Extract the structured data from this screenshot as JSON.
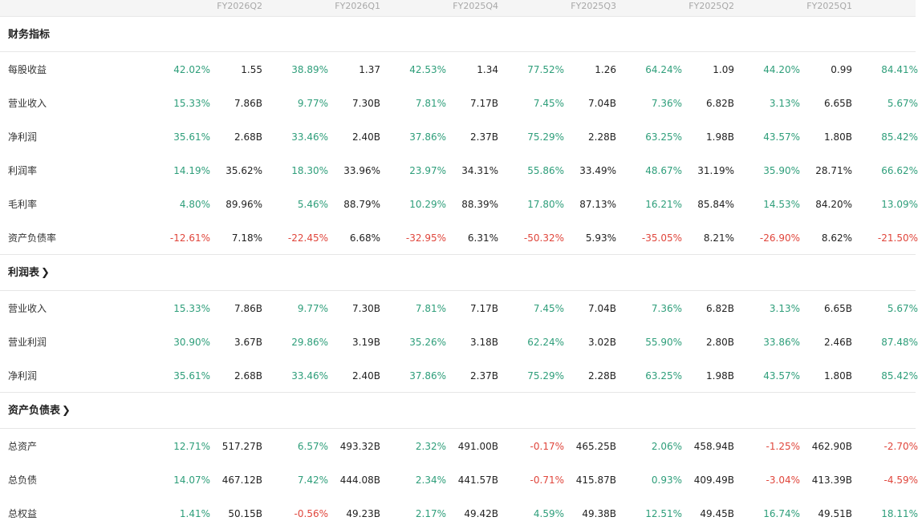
{
  "periods": [
    "FY2026Q2",
    "FY2026Q1",
    "FY2025Q4",
    "FY2025Q3",
    "FY2025Q2",
    "FY2025Q1"
  ],
  "colors": {
    "up": "#2e9e7a",
    "down": "#e0463c"
  },
  "sections": [
    {
      "title": "财务指标",
      "arrow": "",
      "rows": [
        {
          "label": "每股收益",
          "cells": [
            {
              "chg": "42.02%",
              "val": "1.55"
            },
            {
              "chg": "38.89%",
              "val": "1.37"
            },
            {
              "chg": "42.53%",
              "val": "1.34"
            },
            {
              "chg": "77.52%",
              "val": "1.26"
            },
            {
              "chg": "64.24%",
              "val": "1.09"
            },
            {
              "chg": "44.20%",
              "val": "0.99"
            },
            {
              "chg": "84.41%"
            }
          ]
        },
        {
          "label": "营业收入",
          "cells": [
            {
              "chg": "15.33%",
              "val": "7.86B"
            },
            {
              "chg": "9.77%",
              "val": "7.30B"
            },
            {
              "chg": "7.81%",
              "val": "7.17B"
            },
            {
              "chg": "7.45%",
              "val": "7.04B"
            },
            {
              "chg": "7.36%",
              "val": "6.82B"
            },
            {
              "chg": "3.13%",
              "val": "6.65B"
            },
            {
              "chg": "5.67%"
            }
          ]
        },
        {
          "label": "净利润",
          "cells": [
            {
              "chg": "35.61%",
              "val": "2.68B"
            },
            {
              "chg": "33.46%",
              "val": "2.40B"
            },
            {
              "chg": "37.86%",
              "val": "2.37B"
            },
            {
              "chg": "75.29%",
              "val": "2.28B"
            },
            {
              "chg": "63.25%",
              "val": "1.98B"
            },
            {
              "chg": "43.57%",
              "val": "1.80B"
            },
            {
              "chg": "85.42%"
            }
          ]
        },
        {
          "label": "利润率",
          "cells": [
            {
              "chg": "14.19%",
              "val": "35.62%"
            },
            {
              "chg": "18.30%",
              "val": "33.96%"
            },
            {
              "chg": "23.97%",
              "val": "34.31%"
            },
            {
              "chg": "55.86%",
              "val": "33.49%"
            },
            {
              "chg": "48.67%",
              "val": "31.19%"
            },
            {
              "chg": "35.90%",
              "val": "28.71%"
            },
            {
              "chg": "66.62%"
            }
          ]
        },
        {
          "label": "毛利率",
          "cells": [
            {
              "chg": "4.80%",
              "val": "89.96%"
            },
            {
              "chg": "5.46%",
              "val": "88.79%"
            },
            {
              "chg": "10.29%",
              "val": "88.39%"
            },
            {
              "chg": "17.80%",
              "val": "87.13%"
            },
            {
              "chg": "16.21%",
              "val": "85.84%"
            },
            {
              "chg": "14.53%",
              "val": "84.20%"
            },
            {
              "chg": "13.09%"
            }
          ]
        },
        {
          "label": "资产负债率",
          "cells": [
            {
              "chg": "-12.61%",
              "val": "7.18%"
            },
            {
              "chg": "-22.45%",
              "val": "6.68%"
            },
            {
              "chg": "-32.95%",
              "val": "6.31%"
            },
            {
              "chg": "-50.32%",
              "val": "5.93%"
            },
            {
              "chg": "-35.05%",
              "val": "8.21%"
            },
            {
              "chg": "-26.90%",
              "val": "8.62%"
            },
            {
              "chg": "-21.50%"
            }
          ]
        }
      ]
    },
    {
      "title": "利润表",
      "arrow": "❯",
      "rows": [
        {
          "label": "营业收入",
          "cells": [
            {
              "chg": "15.33%",
              "val": "7.86B"
            },
            {
              "chg": "9.77%",
              "val": "7.30B"
            },
            {
              "chg": "7.81%",
              "val": "7.17B"
            },
            {
              "chg": "7.45%",
              "val": "7.04B"
            },
            {
              "chg": "7.36%",
              "val": "6.82B"
            },
            {
              "chg": "3.13%",
              "val": "6.65B"
            },
            {
              "chg": "5.67%"
            }
          ]
        },
        {
          "label": "营业利润",
          "cells": [
            {
              "chg": "30.90%",
              "val": "3.67B"
            },
            {
              "chg": "29.86%",
              "val": "3.19B"
            },
            {
              "chg": "35.26%",
              "val": "3.18B"
            },
            {
              "chg": "62.24%",
              "val": "3.02B"
            },
            {
              "chg": "55.90%",
              "val": "2.80B"
            },
            {
              "chg": "33.86%",
              "val": "2.46B"
            },
            {
              "chg": "87.48%"
            }
          ]
        },
        {
          "label": "净利润",
          "cells": [
            {
              "chg": "35.61%",
              "val": "2.68B"
            },
            {
              "chg": "33.46%",
              "val": "2.40B"
            },
            {
              "chg": "37.86%",
              "val": "2.37B"
            },
            {
              "chg": "75.29%",
              "val": "2.28B"
            },
            {
              "chg": "63.25%",
              "val": "1.98B"
            },
            {
              "chg": "43.57%",
              "val": "1.80B"
            },
            {
              "chg": "85.42%"
            }
          ]
        }
      ]
    },
    {
      "title": "资产负债表",
      "arrow": "❯",
      "rows": [
        {
          "label": "总资产",
          "cells": [
            {
              "chg": "12.71%",
              "val": "517.27B"
            },
            {
              "chg": "6.57%",
              "val": "493.32B"
            },
            {
              "chg": "2.32%",
              "val": "491.00B"
            },
            {
              "chg": "-0.17%",
              "val": "465.25B"
            },
            {
              "chg": "2.06%",
              "val": "458.94B"
            },
            {
              "chg": "-1.25%",
              "val": "462.90B"
            },
            {
              "chg": "-2.70%"
            }
          ]
        },
        {
          "label": "总负债",
          "cells": [
            {
              "chg": "14.07%",
              "val": "467.12B"
            },
            {
              "chg": "7.42%",
              "val": "444.08B"
            },
            {
              "chg": "2.34%",
              "val": "441.57B"
            },
            {
              "chg": "-0.71%",
              "val": "415.87B"
            },
            {
              "chg": "0.93%",
              "val": "409.49B"
            },
            {
              "chg": "-3.04%",
              "val": "413.39B"
            },
            {
              "chg": "-4.59%"
            }
          ]
        },
        {
          "label": "总权益",
          "cells": [
            {
              "chg": "1.41%",
              "val": "50.15B"
            },
            {
              "chg": "-0.56%",
              "val": "49.23B"
            },
            {
              "chg": "2.17%",
              "val": "49.42B"
            },
            {
              "chg": "4.59%",
              "val": "49.38B"
            },
            {
              "chg": "12.51%",
              "val": "49.45B"
            },
            {
              "chg": "16.74%",
              "val": "49.51B"
            },
            {
              "chg": "18.11%"
            }
          ]
        }
      ]
    }
  ]
}
